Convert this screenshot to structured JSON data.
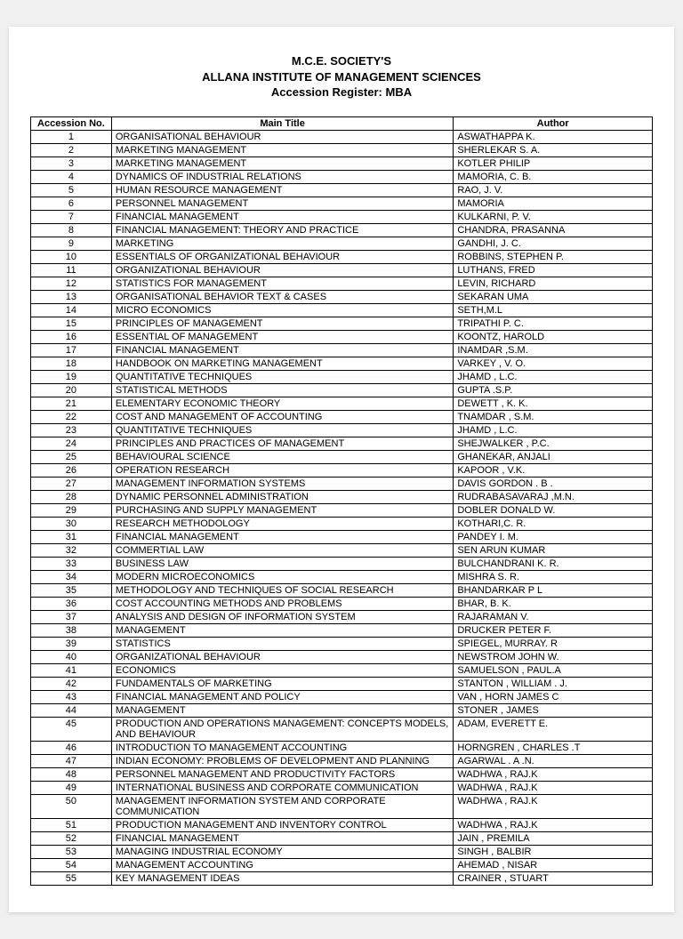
{
  "header": {
    "line1": "M.C.E. SOCIETY'S",
    "line2": "ALLANA INSTITUTE OF MANAGEMENT SCIENCES",
    "line3": "Accession Register: MBA"
  },
  "table": {
    "columns": [
      "Accession No.",
      "Main Title",
      "Author"
    ],
    "rows": [
      [
        "1",
        "ORGANISATIONAL BEHAVIOUR",
        "ASWATHAPPA K."
      ],
      [
        "2",
        "MARKETING MANAGEMENT",
        "SHERLEKAR S. A."
      ],
      [
        "3",
        "MARKETING MANAGEMENT",
        "KOTLER PHILIP"
      ],
      [
        "4",
        "DYNAMICS OF INDUSTRIAL RELATIONS",
        "MAMORIA, C. B."
      ],
      [
        "5",
        "HUMAN RESOURCE MANAGEMENT",
        "RAO, J. V."
      ],
      [
        "6",
        "PERSONNEL MANAGEMENT",
        "MAMORIA"
      ],
      [
        "7",
        "FINANCIAL MANAGEMENT",
        "KULKARNI, P. V."
      ],
      [
        "8",
        "FINANCIAL MANAGEMENT: THEORY AND PRACTICE",
        "CHANDRA, PRASANNA"
      ],
      [
        "9",
        "MARKETING",
        "GANDHI, J. C."
      ],
      [
        "10",
        "ESSENTIALS OF ORGANIZATIONAL BEHAVIOUR",
        "ROBBINS, STEPHEN P."
      ],
      [
        "11",
        "ORGANIZATIONAL BEHAVIOUR",
        "LUTHANS, FRED"
      ],
      [
        "12",
        "STATISTICS FOR MANAGEMENT",
        "LEVIN, RICHARD"
      ],
      [
        "13",
        "ORGANISATIONAL BEHAVIOR TEXT & CASES",
        "SEKARAN UMA"
      ],
      [
        "14",
        "MICRO ECONOMICS",
        "SETH,M.L"
      ],
      [
        "15",
        "PRINCIPLES OF MANAGEMENT",
        "TRIPATHI P. C."
      ],
      [
        "16",
        "ESSENTIAL OF MANAGEMENT",
        "KOONTZ, HAROLD"
      ],
      [
        "17",
        "FINANCIAL MANAGEMENT",
        "INAMDAR ,S.M."
      ],
      [
        "18",
        "HANDBOOK ON MARKETING MANAGEMENT",
        "VARKEY , V. O."
      ],
      [
        "19",
        "QUANTITATIVE TECHNIQUES",
        "JHAMD , L.C."
      ],
      [
        "20",
        "STATISTICAL METHODS",
        "GUPTA .S.P."
      ],
      [
        "21",
        "ELEMENTARY ECONOMIC THEORY",
        "DEWETT , K. K."
      ],
      [
        "22",
        "COST AND MANAGEMENT OF ACCOUNTING",
        "TNAMDAR , S.M."
      ],
      [
        "23",
        "QUANTITATIVE TECHNIQUES",
        "JHAMD , L.C."
      ],
      [
        "24",
        "PRINCIPLES AND PRACTICES OF MANAGEMENT",
        "SHEJWALKER , P.C."
      ],
      [
        "25",
        "BEHAVIOURAL SCIENCE",
        "GHANEKAR, ANJALI"
      ],
      [
        "26",
        "OPERATION RESEARCH",
        "KAPOOR , V.K."
      ],
      [
        "27",
        "MANAGEMENT INFORMATION SYSTEMS",
        "DAVIS GORDON . B ."
      ],
      [
        "28",
        "DYNAMIC PERSONNEL ADMINISTRATION",
        "RUDRABASAVARAJ ,M.N."
      ],
      [
        "29",
        "PURCHASING AND SUPPLY MANAGEMENT",
        "DOBLER DONALD W."
      ],
      [
        "30",
        "RESEARCH METHODOLOGY",
        "KOTHARI,C. R."
      ],
      [
        "31",
        "FINANCIAL MANAGEMENT",
        "PANDEY I. M."
      ],
      [
        "32",
        "COMMERTIAL LAW",
        "SEN ARUN KUMAR"
      ],
      [
        "33",
        "BUSINESS LAW",
        "BULCHANDRANI K. R."
      ],
      [
        "34",
        "MODERN MICROECONOMICS",
        "MISHRA S. R."
      ],
      [
        "35",
        "METHODOLOGY AND TECHNIQUES OF SOCIAL RESEARCH",
        "BHANDARKAR P L"
      ],
      [
        "36",
        "COST ACCOUNTING METHODS AND PROBLEMS",
        "BHAR, B. K."
      ],
      [
        "37",
        "ANALYSIS AND DESIGN OF INFORMATION SYSTEM",
        "RAJARAMAN V."
      ],
      [
        "38",
        "MANAGEMENT",
        "DRUCKER PETER F."
      ],
      [
        "39",
        "STATISTICS",
        "SPIEGEL, MURRAY. R"
      ],
      [
        "40",
        "ORGANIZATIONAL BEHAVIOUR",
        "NEWSTROM JOHN W."
      ],
      [
        "41",
        "ECONOMICS",
        "SAMUELSON , PAUL.A"
      ],
      [
        "42",
        "FUNDAMENTALS OF MARKETING",
        "STANTON , WILLIAM . J."
      ],
      [
        "43",
        "FINANCIAL MANAGEMENT AND POLICY",
        "VAN , HORN JAMES C"
      ],
      [
        "44",
        "MANAGEMENT",
        "STONER , JAMES"
      ],
      [
        "45",
        "PRODUCTION AND OPERATIONS MANAGEMENT: CONCEPTS MODELS, AND BEHAVIOUR",
        "ADAM, EVERETT E."
      ],
      [
        "46",
        "INTRODUCTION TO MANAGEMENT ACCOUNTING",
        "HORNGREN , CHARLES .T"
      ],
      [
        "47",
        "INDIAN ECONOMY: PROBLEMS OF DEVELOPMENT AND PLANNING",
        "AGARWAL . A .N."
      ],
      [
        "48",
        "PERSONNEL MANAGEMENT AND PRODUCTIVITY FACTORS",
        "WADHWA  , RAJ.K"
      ],
      [
        "49",
        "INTERNATIONAL BUSINESS AND CORPORATE COMMUNICATION",
        "WADHWA  , RAJ.K"
      ],
      [
        "50",
        "MANAGEMENT INFORMATION SYSTEM AND CORPORATE COMMUNICATION",
        "WADHWA  , RAJ.K"
      ],
      [
        "51",
        "PRODUCTION MANAGEMENT AND INVENTORY CONTROL",
        "WADHWA  , RAJ.K"
      ],
      [
        "52",
        "FINANCIAL MANAGEMENT",
        "JAIN , PREMILA"
      ],
      [
        "53",
        "MANAGING INDUSTRIAL ECONOMY",
        "SINGH , BALBIR"
      ],
      [
        "54",
        "MANAGEMENT ACCOUNTING",
        "AHEMAD , NISAR"
      ],
      [
        "55",
        "KEY MANAGEMENT IDEAS",
        "CRAINER , STUART"
      ]
    ]
  }
}
